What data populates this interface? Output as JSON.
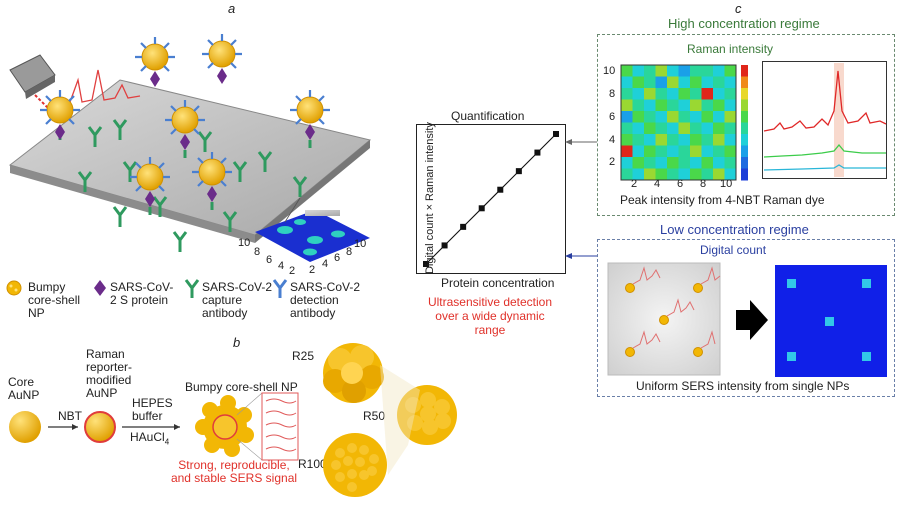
{
  "panels": {
    "a": "a",
    "b": "b",
    "c": "c"
  },
  "panel_a": {
    "legend": [
      {
        "text": "Bumpy core-shell NP",
        "icon": "bumpy-np-icon"
      },
      {
        "text": "SARS-CoV-2 S protein",
        "icon": "s-protein-icon"
      },
      {
        "text": "SARS-CoV-2 capture antibody",
        "icon": "capture-antibody-icon"
      },
      {
        "text": "SARS-CoV-2 detection antibody",
        "icon": "detection-antibody-icon"
      }
    ],
    "heatmap_ticks": [
      "10",
      "8",
      "6",
      "4",
      "2",
      "2",
      "4",
      "6",
      "8",
      "10"
    ]
  },
  "panel_b": {
    "core": "Core AuNP",
    "raman_reporter": "Raman reporter-modified AuNP",
    "bumpy": "Bumpy core-shell NP",
    "step1": "NBT",
    "step2a": "HEPES buffer",
    "step2b": "HAuCl",
    "step2b_sub": "4",
    "signal": "Strong, reproducible, and stable SERS signal",
    "sizes": [
      "R25",
      "R50",
      "R100"
    ]
  },
  "panel_c": {
    "high_title": "High concentration regime",
    "raman_intensity": "Raman intensity",
    "peak_caption": "Peak intensity from 4-NBT Raman dye",
    "low_title": "Low concentration regime",
    "digital_count": "Digital count",
    "uniform_caption": "Uniform SERS intensity from single NPs",
    "heatmap_y_ticks": [
      "10",
      "8",
      "6",
      "4",
      "2"
    ],
    "heatmap_x_ticks": [
      "2",
      "4",
      "6",
      "8",
      "10"
    ]
  },
  "chart_data": {
    "type": "scatter",
    "title": "Quantification",
    "xlabel": "Protein concentration",
    "ylabel": "Digital count × Raman intensity",
    "x": [
      1,
      2,
      3,
      4,
      5,
      6,
      7,
      8
    ],
    "y": [
      1,
      2,
      3,
      4,
      5,
      6,
      7,
      8
    ],
    "annotation": "Ultrasensitive detection over a wide dynamic range",
    "grid": false,
    "line_color": "#111111"
  },
  "colors": {
    "green": "#3a7a3a",
    "blue": "#2a3fa0",
    "red": "#e0312a",
    "gold": "#f2b705"
  }
}
